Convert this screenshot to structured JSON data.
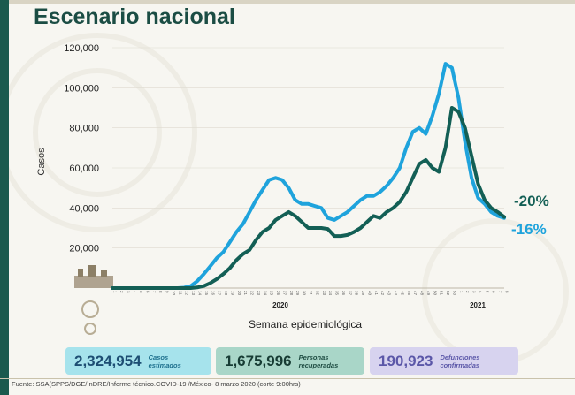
{
  "title": "Escenario nacional",
  "chart_data": {
    "type": "line",
    "ylabel": "Casos",
    "xlabel": "Semana epidemiológica",
    "ylim": [
      0,
      120000
    ],
    "y_ticks": [
      "20,000",
      "40,000",
      "60,000",
      "80,000",
      "100,000",
      "120,000"
    ],
    "y_tick_values": [
      20000,
      40000,
      60000,
      80000,
      100000,
      120000
    ],
    "x_weeks_2020": [
      1,
      2,
      3,
      4,
      5,
      6,
      7,
      8,
      9,
      10,
      11,
      12,
      13,
      14,
      15,
      16,
      17,
      18,
      19,
      20,
      21,
      22,
      23,
      24,
      25,
      26,
      27,
      28,
      29,
      30,
      31,
      32,
      33,
      34,
      35,
      36,
      37,
      38,
      39,
      40,
      41,
      42,
      43,
      44,
      45,
      46,
      47,
      48,
      49,
      50,
      51,
      52,
      53
    ],
    "x_weeks_2021": [
      1,
      2,
      3,
      4,
      5,
      6,
      7,
      8
    ],
    "year_labels": [
      "2020",
      "2021"
    ],
    "series": [
      {
        "color": "#1fa3dc",
        "end_label": "-16%",
        "values": [
          0,
          0,
          0,
          0,
          0,
          0,
          0,
          0,
          0,
          0,
          0,
          200,
          1000,
          3500,
          7000,
          11000,
          15000,
          18000,
          23000,
          28000,
          32000,
          38000,
          44000,
          49000,
          54000,
          55000,
          54000,
          50000,
          44000,
          42000,
          42000,
          41000,
          40000,
          35000,
          34000,
          36000,
          38000,
          41000,
          44000,
          46000,
          46000,
          48000,
          51000,
          55000,
          60000,
          70000,
          78000,
          80000,
          77000,
          86000,
          97000,
          112000,
          110000,
          95000,
          73000,
          55000,
          45000,
          42000,
          38000,
          36000,
          35000
        ]
      },
      {
        "color": "#135f55",
        "end_label": "-20%",
        "values": [
          0,
          0,
          0,
          0,
          0,
          0,
          0,
          0,
          0,
          0,
          0,
          0,
          0,
          300,
          1000,
          2500,
          4500,
          7000,
          10000,
          14000,
          17000,
          19000,
          24000,
          28000,
          30000,
          34000,
          36000,
          38000,
          36000,
          33000,
          30000,
          30000,
          30000,
          29500,
          26000,
          26000,
          26500,
          28000,
          30000,
          33000,
          36000,
          35000,
          38000,
          40000,
          43000,
          48000,
          55000,
          62000,
          64000,
          60000,
          58000,
          70000,
          90000,
          88000,
          80000,
          66000,
          52000,
          44000,
          40000,
          38000,
          35500
        ]
      }
    ]
  },
  "stats": {
    "cases_value": "2,324,954",
    "cases_label_1": "Casos",
    "cases_label_2": "estimados",
    "recovered_value": "1,675,996",
    "recovered_label_1": "Personas",
    "recovered_label_2": "recuperadas",
    "deaths_value": "190,923",
    "deaths_label_1": "Defunciones",
    "deaths_label_2": "confirmadas"
  },
  "source": "Fuente: SSA(SPPS/DGE/InDRE/Informe técnico.COVID-19 /México- 8 marzo 2020 (corte 9:00hrs)"
}
